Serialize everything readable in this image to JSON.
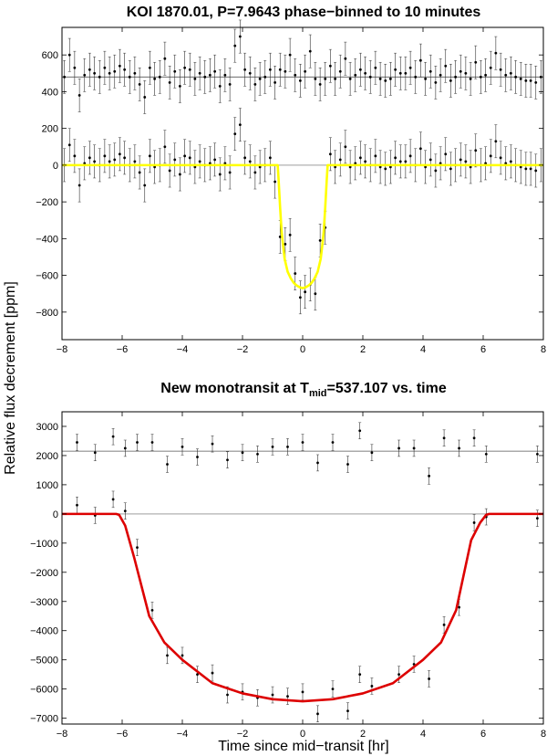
{
  "figure": {
    "ylabel": "Relative flux decrement [ppm]",
    "xlabel": "Time since mid−transit [hr]"
  },
  "chart_data": [
    {
      "type": "scatter",
      "title": "KOI 1870.01, P=7.9643 phase−binned to 10 minutes",
      "xlim": [
        -8,
        8
      ],
      "ylim": [
        -950,
        750
      ],
      "xticks": [
        -8,
        -6,
        -4,
        -2,
        0,
        2,
        4,
        6,
        8
      ],
      "yticks": [
        -800,
        -600,
        -400,
        -200,
        0,
        200,
        400,
        600
      ],
      "offset": 480,
      "model_color": "#ffff00",
      "model": {
        "depth": 670,
        "x": [
          -8,
          -0.83,
          -0.8,
          -0.75,
          -0.7,
          -0.65,
          -0.6,
          -0.5,
          -0.4,
          -0.3,
          -0.2,
          -0.1,
          0,
          0.1,
          0.2,
          0.3,
          0.4,
          0.5,
          0.6,
          0.65,
          0.7,
          0.75,
          0.8,
          0.83,
          8
        ],
        "y": [
          0,
          0,
          -80,
          -230,
          -360,
          -440,
          -510,
          -580,
          -615,
          -640,
          -655,
          -665,
          -670,
          -665,
          -655,
          -640,
          -615,
          -580,
          -510,
          -440,
          -360,
          -230,
          -80,
          0,
          0
        ]
      },
      "series": [
        {
          "name": "residuals",
          "x": [
            -7.92,
            -7.75,
            -7.58,
            -7.42,
            -7.25,
            -7.08,
            -6.92,
            -6.75,
            -6.58,
            -6.42,
            -6.25,
            -6.08,
            -5.92,
            -5.75,
            -5.58,
            -5.42,
            -5.25,
            -5.08,
            -4.92,
            -4.75,
            -4.58,
            -4.42,
            -4.25,
            -4.08,
            -3.92,
            -3.75,
            -3.58,
            -3.42,
            -3.25,
            -3.08,
            -2.92,
            -2.75,
            -2.58,
            -2.42,
            -2.25,
            -2.08,
            -1.92,
            -1.75,
            -1.58,
            -1.42,
            -1.25,
            -1.08,
            -0.92,
            -0.75,
            -0.58,
            -0.42,
            -0.25,
            -0.08,
            0.08,
            0.25,
            0.42,
            0.58,
            0.75,
            0.92,
            1.08,
            1.25,
            1.42,
            1.58,
            1.75,
            1.92,
            2.08,
            2.25,
            2.42,
            2.58,
            2.75,
            2.92,
            3.08,
            3.25,
            3.42,
            3.58,
            3.75,
            3.92,
            4.08,
            4.25,
            4.42,
            4.58,
            4.75,
            4.92,
            5.08,
            5.25,
            5.42,
            5.58,
            5.75,
            5.92,
            6.08,
            6.25,
            6.42,
            6.58,
            6.75,
            6.92,
            7.08,
            7.25,
            7.42,
            7.58,
            7.75,
            7.92
          ],
          "y": [
            480,
            600,
            530,
            380,
            490,
            520,
            500,
            480,
            530,
            500,
            510,
            540,
            520,
            480,
            500,
            440,
            370,
            530,
            470,
            480,
            580,
            450,
            510,
            430,
            530,
            520,
            470,
            500,
            480,
            490,
            510,
            430,
            490,
            440,
            650,
            700,
            520,
            500,
            440,
            470,
            480,
            520,
            450,
            520,
            510,
            600,
            490,
            460,
            510,
            620,
            470,
            440,
            470,
            540,
            470,
            510,
            580,
            470,
            490,
            520,
            500,
            480,
            530,
            470,
            460,
            470,
            520,
            500,
            500,
            530,
            480,
            570,
            470,
            510,
            450,
            490,
            540,
            460,
            480,
            510,
            500,
            470,
            560,
            480,
            490,
            530,
            610,
            520,
            490,
            500,
            480,
            470,
            460,
            460,
            450,
            480
          ],
          "err": 90
        },
        {
          "name": "binned flux",
          "x": [
            -7.92,
            -7.75,
            -7.58,
            -7.42,
            -7.25,
            -7.08,
            -6.92,
            -6.75,
            -6.58,
            -6.42,
            -6.25,
            -6.08,
            -5.92,
            -5.75,
            -5.58,
            -5.42,
            -5.25,
            -5.08,
            -4.92,
            -4.75,
            -4.58,
            -4.42,
            -4.25,
            -4.08,
            -3.92,
            -3.75,
            -3.58,
            -3.42,
            -3.25,
            -3.08,
            -2.92,
            -2.75,
            -2.58,
            -2.42,
            -2.25,
            -2.08,
            -1.92,
            -1.75,
            -1.58,
            -1.42,
            -1.25,
            -1.08,
            -0.92,
            -0.75,
            -0.58,
            -0.42,
            -0.25,
            -0.08,
            0.08,
            0.25,
            0.42,
            0.58,
            0.75,
            0.92,
            1.08,
            1.25,
            1.42,
            1.58,
            1.75,
            1.92,
            2.08,
            2.25,
            2.42,
            2.58,
            2.75,
            2.92,
            3.08,
            3.25,
            3.42,
            3.58,
            3.75,
            3.92,
            4.08,
            4.25,
            4.42,
            4.58,
            4.75,
            4.92,
            5.08,
            5.25,
            5.42,
            5.58,
            5.75,
            5.92,
            6.08,
            6.25,
            6.42,
            6.58,
            6.75,
            6.92,
            7.08,
            7.25,
            7.42,
            7.58,
            7.75,
            7.92
          ],
          "y": [
            0,
            110,
            50,
            -110,
            10,
            40,
            20,
            0,
            50,
            20,
            30,
            60,
            40,
            0,
            20,
            -40,
            -110,
            50,
            -10,
            0,
            100,
            -30,
            30,
            -50,
            50,
            40,
            -10,
            20,
            0,
            10,
            30,
            -50,
            10,
            -40,
            170,
            220,
            40,
            20,
            -40,
            -10,
            0,
            40,
            -90,
            -390,
            -430,
            -380,
            -590,
            -720,
            -690,
            -650,
            -700,
            -410,
            -340,
            60,
            -10,
            30,
            100,
            -10,
            10,
            40,
            20,
            0,
            50,
            -10,
            -20,
            -10,
            40,
            20,
            20,
            50,
            0,
            90,
            -10,
            30,
            -30,
            10,
            60,
            -20,
            0,
            30,
            20,
            -10,
            80,
            0,
            10,
            50,
            130,
            40,
            10,
            20,
            0,
            -10,
            -20,
            -20,
            -30,
            0
          ],
          "err": 90
        }
      ]
    },
    {
      "type": "scatter",
      "title_prefix": "New monotransit at T",
      "title_sub": "mid",
      "title_suffix": "=537.107 vs. time",
      "xlim": [
        -8,
        8
      ],
      "ylim": [
        -7200,
        3500
      ],
      "xticks": [
        -8,
        -6,
        -4,
        -2,
        0,
        2,
        4,
        6,
        8
      ],
      "yticks": [
        -7000,
        -6000,
        -5000,
        -4000,
        -3000,
        -2000,
        -1000,
        0,
        1000,
        2000,
        3000
      ],
      "offset": 2150,
      "model_color": "#dd0000",
      "model": {
        "x": [
          -8,
          -6.2,
          -6.1,
          -5.9,
          -5.6,
          -5.1,
          -4.6,
          -4.0,
          -3.0,
          -2.0,
          -1.0,
          0,
          1.0,
          2.0,
          3.0,
          4.0,
          4.6,
          5.1,
          5.6,
          5.9,
          6.1,
          6.2,
          8
        ],
        "y": [
          0,
          0,
          -30,
          -400,
          -1500,
          -3500,
          -4400,
          -5000,
          -5800,
          -6150,
          -6350,
          -6420,
          -6350,
          -6150,
          -5800,
          -5000,
          -4400,
          -3300,
          -900,
          -300,
          -30,
          0,
          0
        ]
      },
      "series": [
        {
          "name": "residuals",
          "x": [
            -7.5,
            -6.9,
            -6.3,
            -5.9,
            -5.5,
            -5.0,
            -4.5,
            -4.0,
            -3.5,
            -3.0,
            -2.5,
            -2.0,
            -1.5,
            -1.0,
            -0.5,
            0.0,
            0.5,
            1.0,
            1.5,
            1.9,
            2.3,
            3.2,
            3.7,
            4.2,
            4.7,
            5.2,
            5.7,
            6.1,
            7.8
          ],
          "y": [
            2450,
            2100,
            2650,
            2250,
            2450,
            2450,
            1700,
            2300,
            1950,
            2400,
            1850,
            2100,
            2050,
            2300,
            2300,
            2450,
            1750,
            2450,
            1700,
            2850,
            2100,
            2250,
            2250,
            1300,
            2600,
            2250,
            2600,
            2050,
            2050
          ],
          "err": 280
        },
        {
          "name": "flux",
          "x": [
            -7.5,
            -6.9,
            -6.3,
            -5.9,
            -5.5,
            -5.0,
            -4.5,
            -4.0,
            -3.5,
            -3.0,
            -2.5,
            -2.0,
            -1.5,
            -1.0,
            -0.5,
            0.0,
            0.5,
            1.0,
            1.5,
            1.9,
            2.3,
            3.2,
            3.7,
            4.2,
            4.7,
            5.2,
            5.7,
            6.1,
            7.8
          ],
          "y": [
            300,
            -50,
            500,
            100,
            -1150,
            -3300,
            -4850,
            -4850,
            -5500,
            -5450,
            -6200,
            -6100,
            -6300,
            -6200,
            -6250,
            -6100,
            -6850,
            -6000,
            -6750,
            -5500,
            -5900,
            -5500,
            -5150,
            -5650,
            -3800,
            -3200,
            -300,
            -100,
            -150
          ],
          "err": 280
        }
      ]
    }
  ]
}
